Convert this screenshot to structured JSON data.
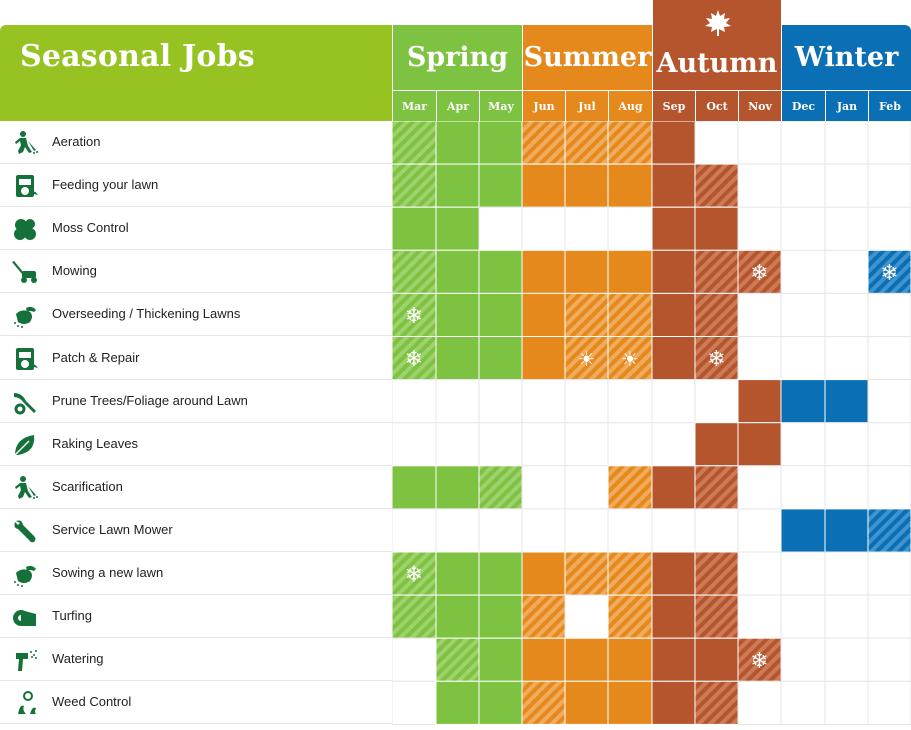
{
  "title": "Seasonal Jobs",
  "seasons": [
    {
      "name": "Spring",
      "color": "#7dc241",
      "months": [
        "Mar",
        "Apr",
        "May"
      ]
    },
    {
      "name": "Summer",
      "color": "#e5891d",
      "months": [
        "Jun",
        "Jul",
        "Aug"
      ]
    },
    {
      "name": "Autumn",
      "color": "#b5552e",
      "months": [
        "Sep",
        "Oct",
        "Nov"
      ]
    },
    {
      "name": "Winter",
      "color": "#0a6fb4",
      "months": [
        "Dec",
        "Jan",
        "Feb"
      ]
    }
  ],
  "month_header_color": "#96c322",
  "cell_states_legend": {
    "F": "solid",
    "H": "hatched",
    "E": "empty"
  },
  "icons_legend": {
    "snow": "snowflake-icon",
    "sun": "sun-icon"
  },
  "chart_data": {
    "type": "table",
    "title": "Seasonal Jobs",
    "columns": [
      "Mar",
      "Apr",
      "May",
      "Jun",
      "Jul",
      "Aug",
      "Sep",
      "Oct",
      "Nov",
      "Dec",
      "Jan",
      "Feb"
    ],
    "rows": [
      {
        "task": "Aeration",
        "icon": "aerator-person-icon",
        "cells": [
          "H",
          "F",
          "F",
          "H",
          "H",
          "H",
          "F",
          "E",
          "E",
          "E",
          "E",
          "E"
        ],
        "marks": {}
      },
      {
        "task": "Feeding your lawn",
        "icon": "fertilizer-bag-icon",
        "cells": [
          "H",
          "F",
          "F",
          "F",
          "F",
          "F",
          "F",
          "H",
          "E",
          "E",
          "E",
          "E"
        ],
        "marks": {}
      },
      {
        "task": "Moss Control",
        "icon": "moss-icon",
        "cells": [
          "F",
          "F",
          "E",
          "E",
          "E",
          "E",
          "F",
          "F",
          "E",
          "E",
          "E",
          "E"
        ],
        "marks": {}
      },
      {
        "task": "Mowing",
        "icon": "lawn-mower-icon",
        "cells": [
          "H",
          "F",
          "F",
          "F",
          "F",
          "F",
          "F",
          "H",
          "H",
          "E",
          "E",
          "H"
        ],
        "marks": {
          "Nov": "snow",
          "Feb": "snow"
        }
      },
      {
        "task": "Overseeding / Thickening Lawns",
        "icon": "seeding-hand-icon",
        "cells": [
          "H",
          "F",
          "F",
          "F",
          "H",
          "H",
          "F",
          "H",
          "E",
          "E",
          "E",
          "E"
        ],
        "marks": {
          "Mar": "snow"
        }
      },
      {
        "task": "Patch & Repair",
        "icon": "repair-bag-icon",
        "cells": [
          "H",
          "F",
          "F",
          "F",
          "H",
          "H",
          "F",
          "H",
          "E",
          "E",
          "E",
          "E"
        ],
        "marks": {
          "Mar": "snow",
          "Jul": "sun",
          "Aug": "sun",
          "Oct": "snow"
        }
      },
      {
        "task": "Prune Trees/Foliage around Lawn",
        "icon": "pruning-shears-icon",
        "cells": [
          "E",
          "E",
          "E",
          "E",
          "E",
          "E",
          "E",
          "E",
          "F",
          "F",
          "F",
          "E"
        ],
        "marks": {}
      },
      {
        "task": "Raking Leaves",
        "icon": "leaf-icon",
        "cells": [
          "E",
          "E",
          "E",
          "E",
          "E",
          "E",
          "E",
          "F",
          "F",
          "E",
          "E",
          "E"
        ],
        "marks": {}
      },
      {
        "task": "Scarification",
        "icon": "scarifier-person-icon",
        "cells": [
          "F",
          "F",
          "H",
          "E",
          "E",
          "H",
          "F",
          "H",
          "E",
          "E",
          "E",
          "E"
        ],
        "marks": {}
      },
      {
        "task": "Service Lawn Mower",
        "icon": "wrench-icon",
        "cells": [
          "E",
          "E",
          "E",
          "E",
          "E",
          "E",
          "E",
          "E",
          "E",
          "F",
          "F",
          "H"
        ],
        "marks": {}
      },
      {
        "task": "Sowing a new lawn",
        "icon": "sowing-hand-icon",
        "cells": [
          "H",
          "F",
          "F",
          "F",
          "H",
          "H",
          "F",
          "H",
          "E",
          "E",
          "E",
          "E"
        ],
        "marks": {
          "Mar": "snow"
        }
      },
      {
        "task": "Turfing",
        "icon": "turf-roll-icon",
        "cells": [
          "H",
          "F",
          "F",
          "H",
          "E",
          "H",
          "F",
          "H",
          "E",
          "E",
          "E",
          "E"
        ],
        "marks": {}
      },
      {
        "task": "Watering",
        "icon": "watering-nozzle-icon",
        "cells": [
          "E",
          "H",
          "F",
          "F",
          "F",
          "F",
          "F",
          "F",
          "H",
          "E",
          "E",
          "E"
        ],
        "marks": {
          "Nov": "snow"
        }
      },
      {
        "task": "Weed Control",
        "icon": "weed-dandelion-icon",
        "cells": [
          "E",
          "F",
          "F",
          "H",
          "F",
          "F",
          "F",
          "H",
          "E",
          "E",
          "E",
          "E"
        ],
        "marks": {}
      }
    ]
  }
}
